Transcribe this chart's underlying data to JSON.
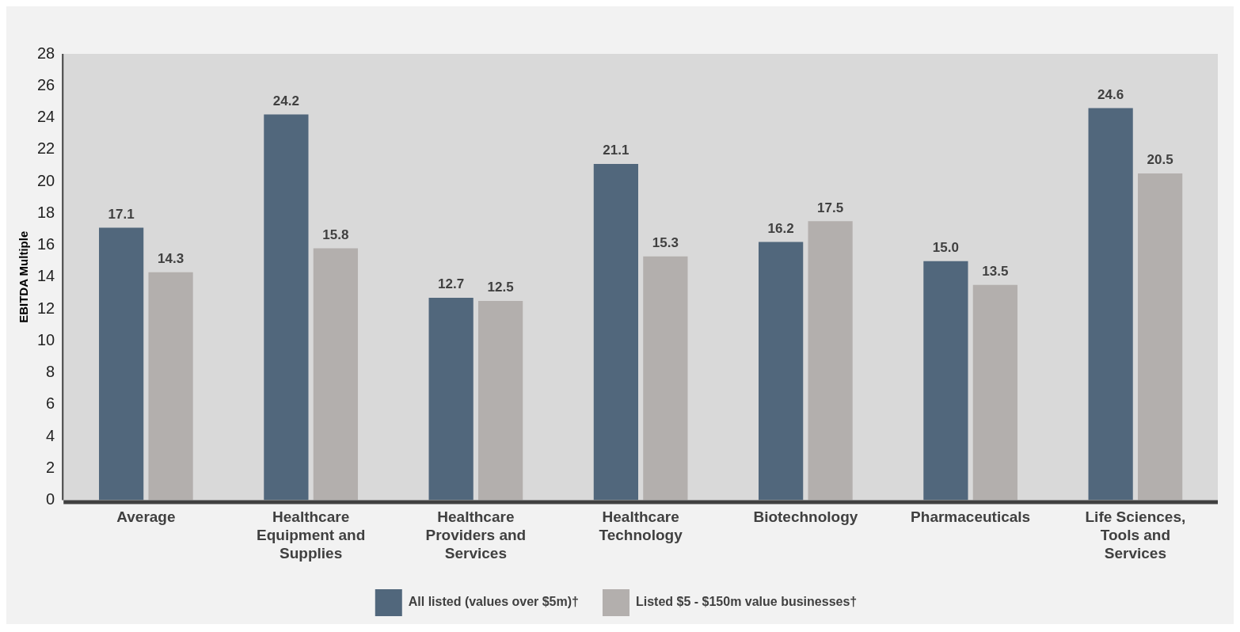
{
  "chart_data": {
    "type": "bar",
    "ylabel": "EBITDA Multiple",
    "categories": [
      "Average",
      "Healthcare Equipment and Supplies",
      "Healthcare Providers and Services",
      "Healthcare Technology",
      "Biotechnology",
      "Pharmaceuticals",
      "Life Sciences, Tools and Services"
    ],
    "series": [
      {
        "name": "All listed (values over $5m)†",
        "color": "#51677c",
        "values": [
          17.1,
          24.2,
          12.7,
          21.1,
          16.2,
          15.0,
          24.6
        ],
        "value_labels": [
          "17.1",
          "24.2",
          "12.7",
          "21.1",
          "16.2",
          "15.0",
          "24.6"
        ]
      },
      {
        "name": "Listed $5 - $150m value businesses†",
        "color": "#b3afad",
        "values": [
          14.3,
          15.8,
          12.5,
          15.3,
          17.5,
          13.5,
          20.5
        ],
        "value_labels": [
          "14.3",
          "15.8",
          "12.5",
          "15.3",
          "17.5",
          "13.5",
          "20.5"
        ]
      }
    ],
    "ylim": [
      0,
      28
    ],
    "yticks": [
      0,
      2,
      4,
      6,
      8,
      10,
      12,
      14,
      16,
      18,
      20,
      22,
      24,
      26,
      28
    ],
    "grid": false,
    "legend": "bottom"
  }
}
